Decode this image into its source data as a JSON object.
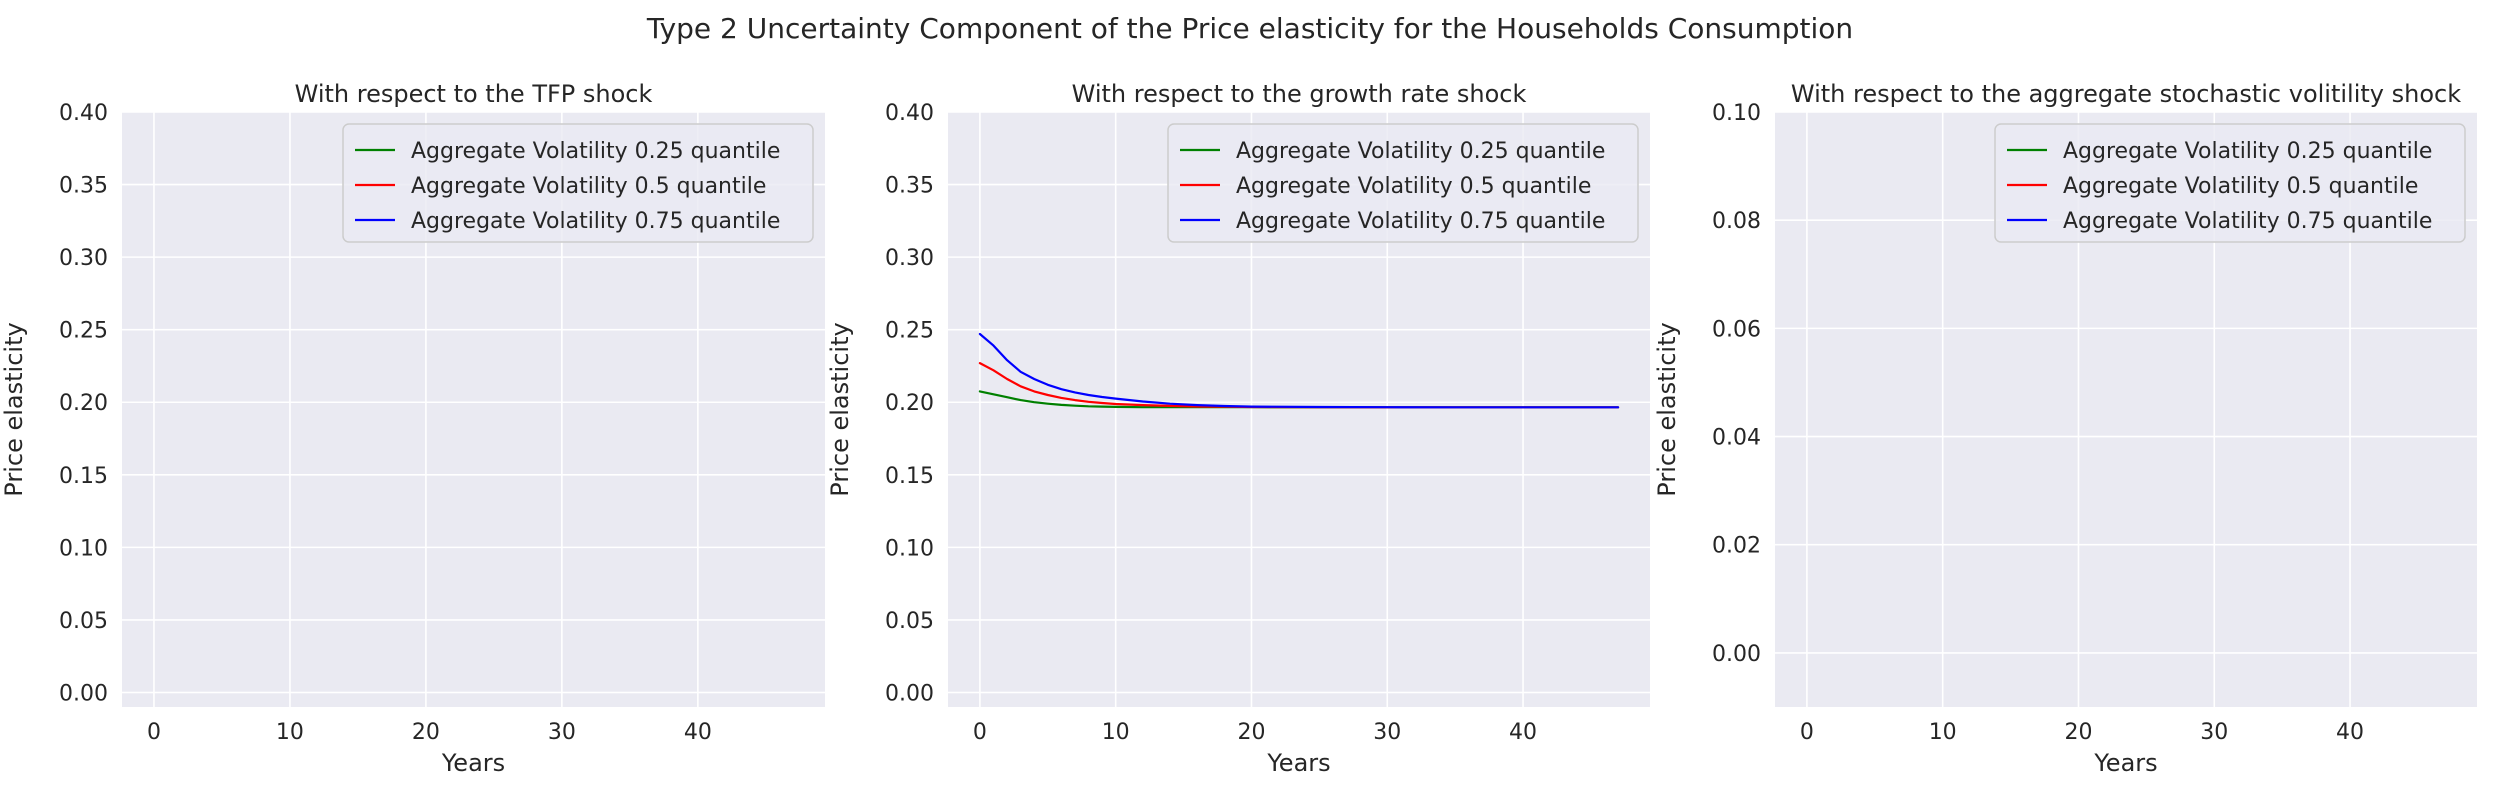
{
  "figure": {
    "suptitle": "Type 2 Uncertainty Component of the Price elasticity for the Households Consumption"
  },
  "colors": {
    "axes_bg": "#EAEAF2",
    "grid": "#FFFFFF",
    "text": "#262626"
  },
  "chart_data": [
    {
      "type": "line",
      "title": "With respect to the TFP shock",
      "xlabel": "Years",
      "ylabel": "Price elasticity",
      "xlim": [
        -2.35,
        49.35
      ],
      "ylim": [
        -0.01,
        0.4
      ],
      "xticks": [
        0,
        10,
        20,
        30,
        40
      ],
      "xtick_labels": [
        "0",
        "10",
        "20",
        "30",
        "40"
      ],
      "yticks": [
        0.0,
        0.05,
        0.1,
        0.15,
        0.2,
        0.25,
        0.3,
        0.35,
        0.4
      ],
      "ytick_labels": [
        "0.00",
        "0.05",
        "0.10",
        "0.15",
        "0.20",
        "0.25",
        "0.30",
        "0.35",
        "0.40"
      ],
      "grid": true,
      "legend_loc": "upper right",
      "series": [
        {
          "name": "Aggregate Volatility 0.25 quantile",
          "color": "#008000",
          "x": [],
          "y": []
        },
        {
          "name": "Aggregate Volatility 0.5 quantile",
          "color": "#FF0000",
          "x": [],
          "y": []
        },
        {
          "name": "Aggregate Volatility 0.75 quantile",
          "color": "#0000FF",
          "x": [],
          "y": []
        }
      ]
    },
    {
      "type": "line",
      "title": "With respect to the growth rate shock",
      "xlabel": "Years",
      "ylabel": "Price elasticity",
      "xlim": [
        -2.35,
        49.35
      ],
      "ylim": [
        -0.01,
        0.4
      ],
      "xticks": [
        0,
        10,
        20,
        30,
        40
      ],
      "xtick_labels": [
        "0",
        "10",
        "20",
        "30",
        "40"
      ],
      "yticks": [
        0.0,
        0.05,
        0.1,
        0.15,
        0.2,
        0.25,
        0.3,
        0.35,
        0.4
      ],
      "ytick_labels": [
        "0.00",
        "0.05",
        "0.10",
        "0.15",
        "0.20",
        "0.25",
        "0.30",
        "0.35",
        "0.40"
      ],
      "grid": true,
      "legend_loc": "upper right",
      "series": [
        {
          "name": "Aggregate Volatility 0.25 quantile",
          "color": "#008000",
          "x": [
            0,
            1,
            2,
            3,
            4,
            5,
            6,
            7,
            8,
            9,
            10,
            12,
            14,
            16,
            18,
            20,
            25,
            30,
            35,
            40,
            47
          ],
          "y": [
            0.2075,
            0.2055,
            0.2035,
            0.2015,
            0.2,
            0.199,
            0.1982,
            0.1976,
            0.1972,
            0.197,
            0.1968,
            0.1966,
            0.1966,
            0.1966,
            0.1966,
            0.1966,
            0.1965,
            0.1965,
            0.1965,
            0.1965,
            0.1965
          ]
        },
        {
          "name": "Aggregate Volatility 0.5 quantile",
          "color": "#FF0000",
          "x": [
            0,
            1,
            2,
            3,
            4,
            5,
            6,
            7,
            8,
            9,
            10,
            12,
            14,
            16,
            18,
            20,
            25,
            30,
            35,
            40,
            47
          ],
          "y": [
            0.227,
            0.222,
            0.216,
            0.211,
            0.2075,
            0.205,
            0.203,
            0.2015,
            0.2003,
            0.1995,
            0.1988,
            0.198,
            0.1975,
            0.1971,
            0.1969,
            0.1967,
            0.1966,
            0.1965,
            0.1965,
            0.1965,
            0.1965
          ]
        },
        {
          "name": "Aggregate Volatility 0.75 quantile",
          "color": "#0000FF",
          "x": [
            0,
            1,
            2,
            3,
            4,
            5,
            6,
            7,
            8,
            9,
            10,
            12,
            14,
            16,
            18,
            20,
            25,
            30,
            35,
            40,
            47
          ],
          "y": [
            0.247,
            0.239,
            0.229,
            0.221,
            0.216,
            0.212,
            0.209,
            0.2068,
            0.205,
            0.2036,
            0.2025,
            0.2005,
            0.199,
            0.198,
            0.1974,
            0.197,
            0.1967,
            0.1966,
            0.1965,
            0.1965,
            0.1965
          ]
        }
      ]
    },
    {
      "type": "line",
      "title": "With respect to the aggregate stochastic volitility shock",
      "xlabel": "Years",
      "ylabel": "Price elasticity",
      "xlim": [
        -2.35,
        49.35
      ],
      "ylim": [
        -0.01,
        0.1
      ],
      "xticks": [
        0,
        10,
        20,
        30,
        40
      ],
      "xtick_labels": [
        "0",
        "10",
        "20",
        "30",
        "40"
      ],
      "yticks": [
        0.0,
        0.02,
        0.04,
        0.06,
        0.08,
        0.1
      ],
      "ytick_labels": [
        "0.00",
        "0.02",
        "0.04",
        "0.06",
        "0.08",
        "0.10"
      ],
      "grid": true,
      "legend_loc": "upper right",
      "series": [
        {
          "name": "Aggregate Volatility 0.25 quantile",
          "color": "#008000",
          "x": [],
          "y": []
        },
        {
          "name": "Aggregate Volatility 0.5 quantile",
          "color": "#FF0000",
          "x": [],
          "y": []
        },
        {
          "name": "Aggregate Volatility 0.75 quantile",
          "color": "#0000FF",
          "x": [],
          "y": []
        }
      ]
    }
  ]
}
